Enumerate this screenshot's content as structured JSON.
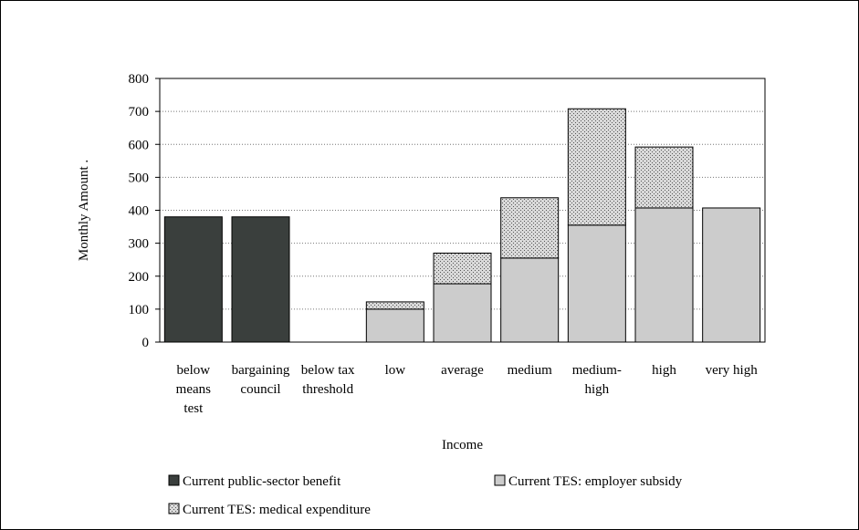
{
  "chart_data": {
    "type": "bar",
    "stacked": true,
    "title": "",
    "xlabel": "Income",
    "ylabel": "Monthly Amount  .",
    "ylim": [
      0,
      800
    ],
    "yticks": [
      0,
      100,
      200,
      300,
      400,
      500,
      600,
      700,
      800
    ],
    "grid": "horizontal-dotted",
    "legend_position": "bottom",
    "categories": [
      [
        "below",
        "means",
        "test"
      ],
      [
        "bargaining",
        "council"
      ],
      [
        "below tax",
        "threshold"
      ],
      [
        "low"
      ],
      [
        "average"
      ],
      [
        "medium"
      ],
      [
        "medium-",
        "high"
      ],
      [
        "high"
      ],
      [
        "very high"
      ]
    ],
    "series": [
      {
        "name": "Current public-sector benefit",
        "color": "#3a3f3d",
        "pattern": "solid",
        "values": [
          380,
          380,
          0,
          0,
          0,
          0,
          0,
          0,
          0
        ]
      },
      {
        "name": "Current TES: employer subsidy",
        "color": "#cccccc",
        "pattern": "solid",
        "values": [
          0,
          0,
          0,
          100,
          177,
          255,
          355,
          407,
          407
        ]
      },
      {
        "name": "Current TES: medical expenditure",
        "color": "#d4d4d4",
        "pattern": "dots",
        "values": [
          0,
          0,
          0,
          22,
          93,
          183,
          353,
          185,
          0
        ]
      }
    ]
  }
}
